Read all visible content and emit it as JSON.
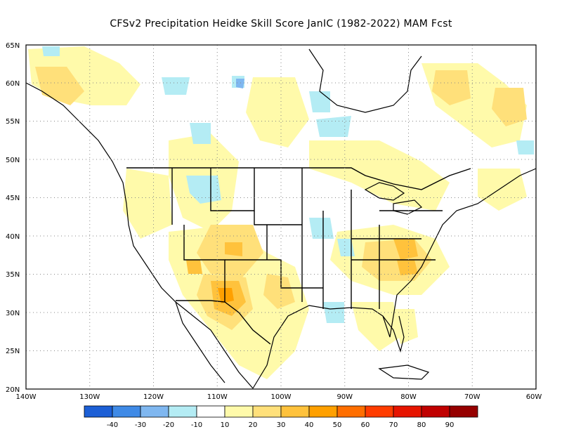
{
  "title": "CFSv2  Precipitation Heidke Skill Score JanIC (1982-2022) MAM Fcst",
  "map": {
    "lat_range": [
      20,
      65
    ],
    "lon_range": [
      -140,
      -60
    ],
    "lat_labels": [
      "20N",
      "25N",
      "30N",
      "35N",
      "40N",
      "45N",
      "50N",
      "55N",
      "60N",
      "65N"
    ],
    "lon_labels": [
      "140W",
      "130W",
      "120W",
      "110W",
      "100W",
      "90W",
      "80W",
      "70W",
      "60W"
    ],
    "gridlines": "dotted"
  },
  "colorbar": {
    "colors": [
      "#1c5fd6",
      "#3f8ae6",
      "#7fb7f0",
      "#b4ecf4",
      "#ffffff",
      "#fffaaa",
      "#ffe07a",
      "#ffc23c",
      "#ffa000",
      "#ff6e00",
      "#ff3c00",
      "#e61400",
      "#c00000",
      "#960000"
    ],
    "tick_labels": [
      "-40",
      "-30",
      "-20",
      "-10",
      "10",
      "20",
      "30",
      "40",
      "50",
      "60",
      "70",
      "80",
      "90"
    ]
  }
}
